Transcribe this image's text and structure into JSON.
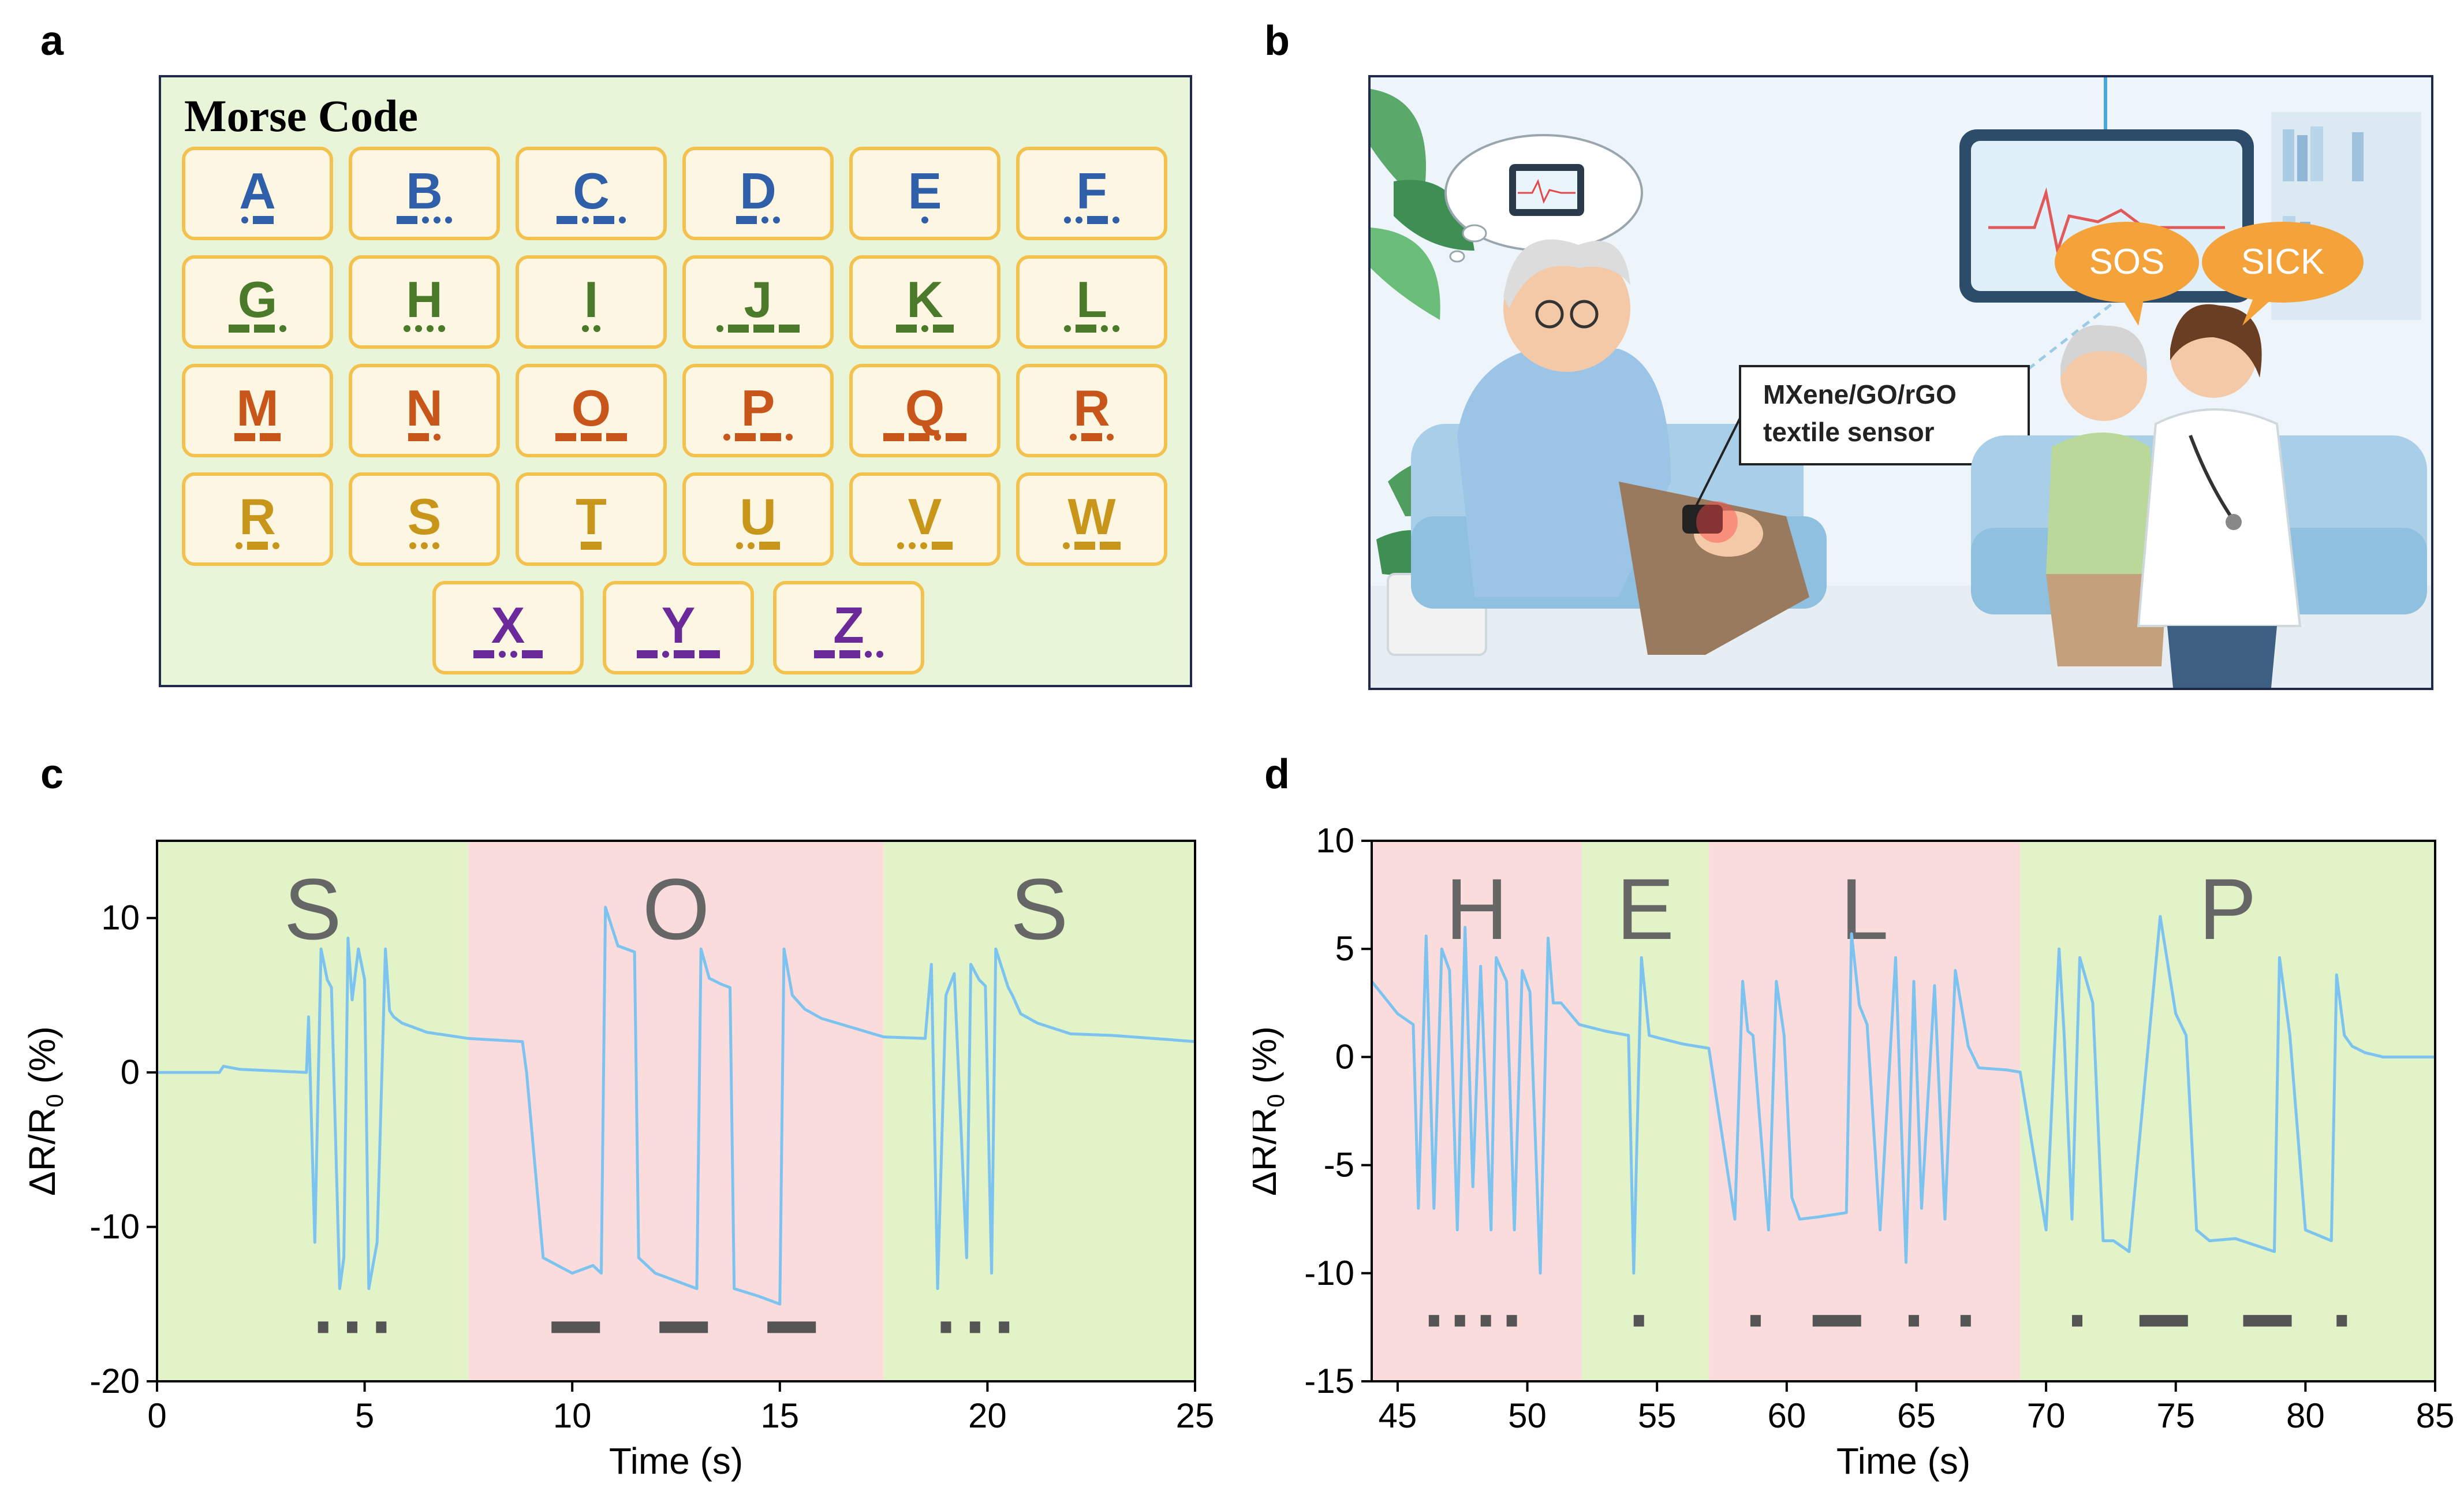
{
  "panels": {
    "a": "a",
    "b": "b",
    "c": "c",
    "d": "d"
  },
  "morse": {
    "title": "Morse Code",
    "colors": {
      "blue": "#2f5fa8",
      "green": "#4a7a2a",
      "orange": "#c8561a",
      "gold": "#c8961a",
      "purple": "#6a2a9a"
    },
    "rows": [
      [
        {
          "letter": "A",
          "code": ".-",
          "color": "blue"
        },
        {
          "letter": "B",
          "code": "-...",
          "color": "blue"
        },
        {
          "letter": "C",
          "code": "-.-.",
          "color": "blue"
        },
        {
          "letter": "D",
          "code": "-..",
          "color": "blue"
        },
        {
          "letter": "E",
          "code": ".",
          "color": "blue"
        },
        {
          "letter": "F",
          "code": "..-.",
          "color": "blue"
        }
      ],
      [
        {
          "letter": "G",
          "code": "--.",
          "color": "green"
        },
        {
          "letter": "H",
          "code": "....",
          "color": "green"
        },
        {
          "letter": "I",
          "code": "..",
          "color": "green"
        },
        {
          "letter": "J",
          "code": ".---",
          "color": "green"
        },
        {
          "letter": "K",
          "code": "-.-",
          "color": "green"
        },
        {
          "letter": "L",
          "code": ".-..",
          "color": "green"
        }
      ],
      [
        {
          "letter": "M",
          "code": "--",
          "color": "orange"
        },
        {
          "letter": "N",
          "code": "-.",
          "color": "orange"
        },
        {
          "letter": "O",
          "code": "---",
          "color": "orange"
        },
        {
          "letter": "P",
          "code": ".--.",
          "color": "orange"
        },
        {
          "letter": "Q",
          "code": "--.-",
          "color": "orange"
        },
        {
          "letter": "R",
          "code": ".-.",
          "color": "orange"
        }
      ],
      [
        {
          "letter": "R",
          "code": ".-.",
          "color": "gold"
        },
        {
          "letter": "S",
          "code": "...",
          "color": "gold"
        },
        {
          "letter": "T",
          "code": "-",
          "color": "gold"
        },
        {
          "letter": "U",
          "code": "..-",
          "color": "gold"
        },
        {
          "letter": "V",
          "code": "...-",
          "color": "gold"
        },
        {
          "letter": "W",
          "code": ".--",
          "color": "gold"
        }
      ],
      [
        {
          "letter": "X",
          "code": "-..-",
          "color": "purple"
        },
        {
          "letter": "Y",
          "code": "-.--",
          "color": "purple"
        },
        {
          "letter": "Z",
          "code": "--..",
          "color": "purple"
        }
      ]
    ]
  },
  "scene": {
    "sensor_label_line1": "MXene/GO/rGO",
    "sensor_label_line2": "textile sensor",
    "bubble_sos": "SOS",
    "bubble_sick": "SICK",
    "colors": {
      "bubble": "#f4a23a",
      "sofa": "#a9cfe8",
      "wall": "#eef5fa"
    }
  },
  "chart_data": [
    {
      "type": "line",
      "panel": "c",
      "xlabel": "Time (s)",
      "ylabel": "ΔR/R",
      "ylabel_sub": "0",
      "ylabel_unit": " (%)",
      "xlim": [
        0,
        25
      ],
      "ylim": [
        -20,
        15
      ],
      "xticks": [
        0,
        5,
        10,
        15,
        20,
        25
      ],
      "yticks": [
        -20,
        -10,
        0,
        10
      ],
      "line_color": "#7cc3f0",
      "regions": [
        {
          "label": "S",
          "x0": 0,
          "x1": 7.5,
          "color": "#e2f3c8",
          "marks": [
            {
              "t": "dot",
              "x": 4.0
            },
            {
              "t": "dot",
              "x": 4.7
            },
            {
              "t": "dot",
              "x": 5.4
            }
          ]
        },
        {
          "label": "O",
          "x0": 7.5,
          "x1": 17.5,
          "color": "#fbdcdc",
          "marks": [
            {
              "t": "dash",
              "x": 9.5
            },
            {
              "t": "dash",
              "x": 12.1
            },
            {
              "t": "dash",
              "x": 14.7
            }
          ]
        },
        {
          "label": "S",
          "x0": 17.5,
          "x1": 25,
          "color": "#e2f3c8",
          "marks": [
            {
              "t": "dot",
              "x": 19.0
            },
            {
              "t": "dot",
              "x": 19.7
            },
            {
              "t": "dot",
              "x": 20.4
            }
          ]
        }
      ],
      "mark_y": -16.5,
      "series": [
        {
          "name": "signal",
          "x": [
            0,
            1.5,
            1.6,
            2,
            3.6,
            3.65,
            3.8,
            3.95,
            4.1,
            4.2,
            4.4,
            4.5,
            4.6,
            4.7,
            4.85,
            5.0,
            5.1,
            5.3,
            5.5,
            5.6,
            5.7,
            5.9,
            6.5,
            7.5,
            8.8,
            8.9,
            9.3,
            10.0,
            10.5,
            10.7,
            10.8,
            11.1,
            11.5,
            11.6,
            12.0,
            13.0,
            13.1,
            13.3,
            13.6,
            13.8,
            13.9,
            14.5,
            15.0,
            15.1,
            15.3,
            15.6,
            16.0,
            17.5,
            18.5,
            18.65,
            18.8,
            19.0,
            19.2,
            19.5,
            19.6,
            19.8,
            19.95,
            20.1,
            20.2,
            20.5,
            20.6,
            20.8,
            21.2,
            22,
            23,
            24,
            25
          ],
          "y": [
            0,
            0,
            0.4,
            0.2,
            0,
            3.6,
            -11,
            8,
            6,
            5.5,
            -14,
            -12,
            8.7,
            4.7,
            8,
            6,
            -14,
            -11,
            8,
            4,
            3.6,
            3.2,
            2.6,
            2.2,
            2,
            0,
            -12,
            -13,
            -12.5,
            -13,
            10.7,
            8.2,
            7.8,
            -12,
            -13,
            -14,
            8,
            6.1,
            5.7,
            5.5,
            -14,
            -14.5,
            -15,
            8,
            5,
            4.1,
            3.5,
            2.3,
            2.2,
            7,
            -14,
            5,
            6.4,
            -12,
            7,
            6,
            5.6,
            -13,
            8,
            5.5,
            5,
            3.8,
            3.2,
            2.5,
            2.4,
            2.2,
            2
          ]
        }
      ]
    },
    {
      "type": "line",
      "panel": "d",
      "xlabel": "Time (s)",
      "ylabel": "ΔR/R",
      "ylabel_sub": "0",
      "ylabel_unit": " (%)",
      "xlim": [
        44,
        85
      ],
      "ylim": [
        -15,
        10
      ],
      "xticks": [
        45,
        50,
        55,
        60,
        65,
        70,
        75,
        80,
        85
      ],
      "yticks": [
        -15,
        -10,
        -5,
        0,
        5,
        10
      ],
      "line_color": "#7cc3f0",
      "regions": [
        {
          "label": "H",
          "x0": 44,
          "x1": 52.1,
          "color": "#fbdcdc",
          "marks": [
            {
              "t": "dot",
              "x": 46.4
            },
            {
              "t": "dot",
              "x": 47.4
            },
            {
              "t": "dot",
              "x": 48.4
            },
            {
              "t": "dot",
              "x": 49.4
            }
          ]
        },
        {
          "label": "E",
          "x0": 52.1,
          "x1": 57,
          "color": "#e2f3c8",
          "marks": [
            {
              "t": "dot",
              "x": 54.3
            }
          ]
        },
        {
          "label": "L",
          "x0": 57,
          "x1": 69,
          "color": "#fbdcdc",
          "marks": [
            {
              "t": "dot",
              "x": 58.8
            },
            {
              "t": "dash",
              "x": 61
            },
            {
              "t": "dot",
              "x": 64.9
            },
            {
              "t": "dot",
              "x": 66.9
            }
          ]
        },
        {
          "label": "P",
          "x0": 69,
          "x1": 85,
          "color": "#e2f3c8",
          "marks": [
            {
              "t": "dot",
              "x": 71.2
            },
            {
              "t": "dash",
              "x": 73.6
            },
            {
              "t": "dash",
              "x": 77.6
            },
            {
              "t": "dot",
              "x": 81.4
            }
          ]
        }
      ],
      "mark_y": -12.2,
      "series": [
        {
          "name": "signal",
          "x": [
            44,
            45,
            45.6,
            45.8,
            46.1,
            46.4,
            46.7,
            47.0,
            47.3,
            47.6,
            47.9,
            48.2,
            48.6,
            48.8,
            49.2,
            49.5,
            49.8,
            50.1,
            50.5,
            50.8,
            51.0,
            51.3,
            52,
            53,
            53.9,
            54.1,
            54.4,
            54.7,
            55,
            56,
            57,
            58,
            58.3,
            58.5,
            58.7,
            59.3,
            59.6,
            59.9,
            60.2,
            60.5,
            61.2,
            62.3,
            62.5,
            62.8,
            63.1,
            63.6,
            64.2,
            64.6,
            64.9,
            65.2,
            65.7,
            66.1,
            66.5,
            67,
            67.4,
            68.5,
            69,
            70,
            70.5,
            70.7,
            71.0,
            71.3,
            71.8,
            72.2,
            72.6,
            73.2,
            74.4,
            75.0,
            75.4,
            75.8,
            76.3,
            77.3,
            78.8,
            79.0,
            79.4,
            80,
            81.0,
            81.2,
            81.5,
            81.8,
            82.3,
            83,
            84,
            85
          ],
          "y": [
            3.5,
            2,
            1.5,
            -7,
            5.6,
            -7,
            5,
            4,
            -8,
            6,
            -6,
            4.2,
            -8,
            4.6,
            3.5,
            -8,
            4,
            3,
            -10,
            5.5,
            2.5,
            2.5,
            1.5,
            1.2,
            1,
            -10,
            4.6,
            1,
            0.9,
            0.6,
            0.4,
            -7.5,
            3.5,
            1.2,
            1,
            -8,
            3.5,
            1,
            -6.5,
            -7.5,
            -7.4,
            -7.2,
            5.7,
            2.4,
            1.5,
            -8,
            4.6,
            -9.5,
            3.5,
            -7,
            3.3,
            -7.5,
            4,
            0.5,
            -0.5,
            -0.6,
            -0.7,
            -8,
            5,
            1,
            -7.5,
            4.6,
            2.5,
            -8.5,
            -8.5,
            -9,
            6.5,
            2,
            1,
            -8,
            -8.5,
            -8.4,
            -9,
            4.6,
            1,
            -8,
            -8.5,
            3.8,
            1,
            0.5,
            0.2,
            0,
            0,
            0
          ]
        }
      ]
    }
  ]
}
